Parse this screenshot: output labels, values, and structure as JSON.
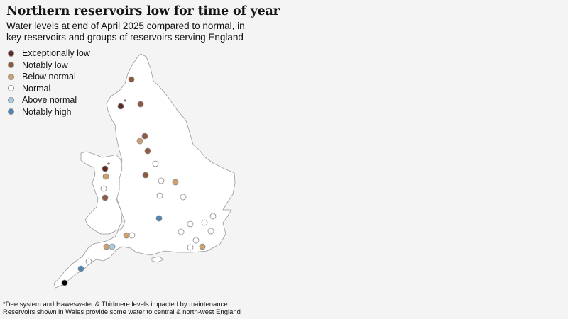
{
  "title": "Northern reservoirs low for time of year",
  "subtitle": "Water levels at end of April 2025 compared to normal, in key reservoirs and groups of reservoirs serving England",
  "legend": [
    {
      "id": "exceptionally-low",
      "label": "Exceptionally low",
      "color": "#5c2a20"
    },
    {
      "id": "notably-low",
      "label": "Notably low",
      "color": "#8f5a41"
    },
    {
      "id": "below-normal",
      "label": "Below normal",
      "color": "#cda06e"
    },
    {
      "id": "normal",
      "label": "Normal",
      "color": "#ffffff"
    },
    {
      "id": "above-normal",
      "label": "Above normal",
      "color": "#a8cde8"
    },
    {
      "id": "notably-high",
      "label": "Notably high",
      "color": "#4a86b8"
    }
  ],
  "map_data": {
    "region": "England and Wales",
    "reservoirs": [
      {
        "status": "notably-low"
      },
      {
        "status": "notably-low"
      },
      {
        "status": "exceptionally-low",
        "asterisk": true
      },
      {
        "status": "notably-low"
      },
      {
        "status": "below-normal"
      },
      {
        "status": "notably-low"
      },
      {
        "status": "normal"
      },
      {
        "status": "exceptionally-low",
        "asterisk": true
      },
      {
        "status": "below-normal"
      },
      {
        "status": "notably-low"
      },
      {
        "status": "normal"
      },
      {
        "status": "below-normal"
      },
      {
        "status": "normal"
      },
      {
        "status": "notably-low"
      },
      {
        "status": "normal"
      },
      {
        "status": "normal"
      },
      {
        "status": "normal"
      },
      {
        "status": "notably-high"
      },
      {
        "status": "normal"
      },
      {
        "status": "normal"
      },
      {
        "status": "normal"
      },
      {
        "status": "normal"
      },
      {
        "status": "below-normal"
      },
      {
        "status": "normal"
      },
      {
        "status": "normal"
      },
      {
        "status": "normal"
      },
      {
        "status": "below-normal"
      },
      {
        "status": "below-normal"
      },
      {
        "status": "above-normal"
      },
      {
        "status": "normal"
      },
      {
        "status": "notably-high"
      }
    ],
    "asterisk": "*"
  },
  "footnotes": [
    "*Dee system and Haweswater & Thirlmere levels impacted by maintenance",
    "Reservoirs shown in Wales provide some water to central & north-west England"
  ]
}
